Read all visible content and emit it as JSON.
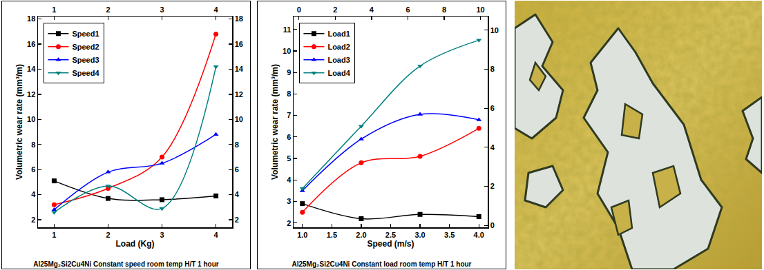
{
  "chart_data": [
    {
      "type": "line",
      "title": "Al25Mg₂Si2Cu4Ni Constant speed room temp H/T 1 hour",
      "x_label": "Load (Kg)",
      "y_label": "Volumetric wear rate (mm³/m)",
      "x": [
        1,
        2,
        3,
        4
      ],
      "series": [
        {
          "name": "Speed1",
          "color": "#000000",
          "marker": "square",
          "line_style": "smooth",
          "values": [
            5.1,
            3.7,
            3.6,
            3.9
          ]
        },
        {
          "name": "Speed2",
          "color": "#ff0000",
          "marker": "circle",
          "line_style": "smooth",
          "values": [
            3.2,
            4.5,
            7.0,
            16.8
          ]
        },
        {
          "name": "Speed3",
          "color": "#0000ff",
          "marker": "triangle-up",
          "line_style": "smooth",
          "values": [
            2.8,
            5.8,
            6.5,
            8.8
          ]
        },
        {
          "name": "Speed4",
          "color": "#008080",
          "marker": "triangle-down",
          "line_style": "smooth",
          "values": [
            2.6,
            4.7,
            2.9,
            14.2
          ]
        }
      ],
      "xlim": [
        0.7,
        4.3
      ],
      "xticks": [
        1,
        2,
        3,
        4
      ],
      "x2lim": [
        0.7,
        4.3
      ],
      "x2ticks": [
        1,
        2,
        3,
        4
      ],
      "ylim": [
        1.4,
        18.2
      ],
      "yticks": [
        2,
        4,
        6,
        8,
        10,
        12,
        14,
        16,
        18
      ],
      "y2lim": [
        1.4,
        18.2
      ],
      "y2ticks": [
        2,
        4,
        6,
        8,
        10,
        12,
        14,
        16,
        18
      ],
      "grid": false,
      "legend": "upper left"
    },
    {
      "type": "line",
      "title": "Al25Mg₂Si2Cu4Ni Constant load room temp H/T 1 hour",
      "x_label": "Speed (m/s)",
      "y_label": "Volumetric wear rate (mm³/m)",
      "x": [
        1,
        2,
        3,
        4
      ],
      "series": [
        {
          "name": "Load1",
          "color": "#000000",
          "marker": "square",
          "line_style": "smooth",
          "values": [
            2.9,
            2.2,
            2.4,
            2.3
          ]
        },
        {
          "name": "Load2",
          "color": "#ff0000",
          "marker": "circle",
          "line_style": "smooth",
          "values": [
            2.5,
            4.8,
            5.1,
            6.4
          ]
        },
        {
          "name": "Load3",
          "color": "#0000ff",
          "marker": "triangle-up",
          "line_style": "smooth",
          "values": [
            3.5,
            5.9,
            7.05,
            6.8
          ]
        },
        {
          "name": "Load4",
          "color": "#008080",
          "marker": "triangle-down",
          "line_style": "smooth",
          "values": [
            3.6,
            6.5,
            9.3,
            10.5
          ]
        }
      ],
      "xlim": [
        0.85,
        4.15
      ],
      "xticks": [
        {
          "value": 1,
          "label": "1.0"
        },
        {
          "value": 1.5,
          "label": "1.5"
        },
        {
          "value": 2,
          "label": "2.0"
        },
        {
          "value": 2.5,
          "label": "2.5"
        },
        {
          "value": 3,
          "label": "3.0"
        },
        {
          "value": 3.5,
          "label": "3.5"
        },
        {
          "value": 4,
          "label": "4.0"
        }
      ],
      "x2lim": [
        -0.3,
        10.4
      ],
      "x2ticks": [
        0,
        2,
        4,
        6,
        8,
        10
      ],
      "ylim": [
        1.8,
        11.6
      ],
      "yticks": [
        2,
        3,
        4,
        5,
        6,
        7,
        8,
        9,
        10,
        11
      ],
      "y2lim": [
        -0.1,
        10.7
      ],
      "y2ticks": [
        0,
        2,
        4,
        6,
        8,
        10
      ],
      "grid": false,
      "legend": "upper left"
    }
  ],
  "image": {
    "type": "micrograph"
  }
}
